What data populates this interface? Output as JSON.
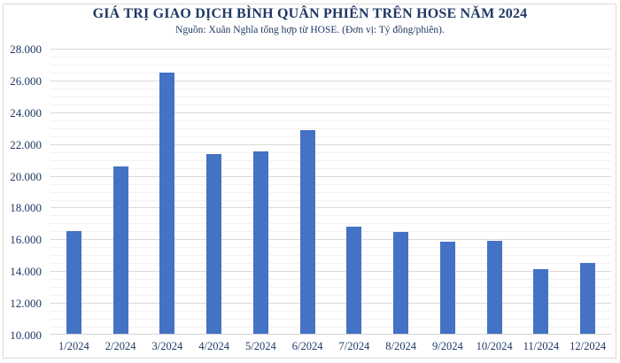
{
  "chart_data": {
    "type": "bar",
    "title": "GIÁ TRỊ GIAO DỊCH BÌNH QUÂN PHIÊN TRÊN HOSE NĂM 2024",
    "subtitle": "Nguồn: Xuân Nghĩa tổng hợp từ HOSE. (Đơn vị: Tỷ đồng/phiên).",
    "xlabel": "",
    "ylabel": "",
    "unit": "Tỷ đồng/phiên",
    "categories": [
      "1/2024",
      "2/2024",
      "3/2024",
      "4/2024",
      "5/2024",
      "6/2024",
      "7/2024",
      "8/2024",
      "9/2024",
      "10/2024",
      "11/2024",
      "12/2024"
    ],
    "values": [
      16500,
      20600,
      26480,
      21350,
      21550,
      22900,
      16820,
      16450,
      15850,
      15900,
      14100,
      14500
    ],
    "ylim": [
      10000,
      28000
    ],
    "y_major_step": 2000,
    "y_minor_step": 500,
    "y_tick_labels": [
      "28.000",
      "26.000",
      "24.000",
      "22.000",
      "20.000",
      "18.000",
      "16.000",
      "14.000",
      "12.000",
      "10.000"
    ],
    "grid": true,
    "legend": "none",
    "colors": {
      "bar": "#4472C4",
      "title_text": "#1F3864",
      "axis_text": "#1F3864",
      "major_grid": "#DADADA",
      "minor_grid": "#F1F1F1",
      "frame_border": "#D9D9D9",
      "background": "#FFFFFF"
    }
  }
}
